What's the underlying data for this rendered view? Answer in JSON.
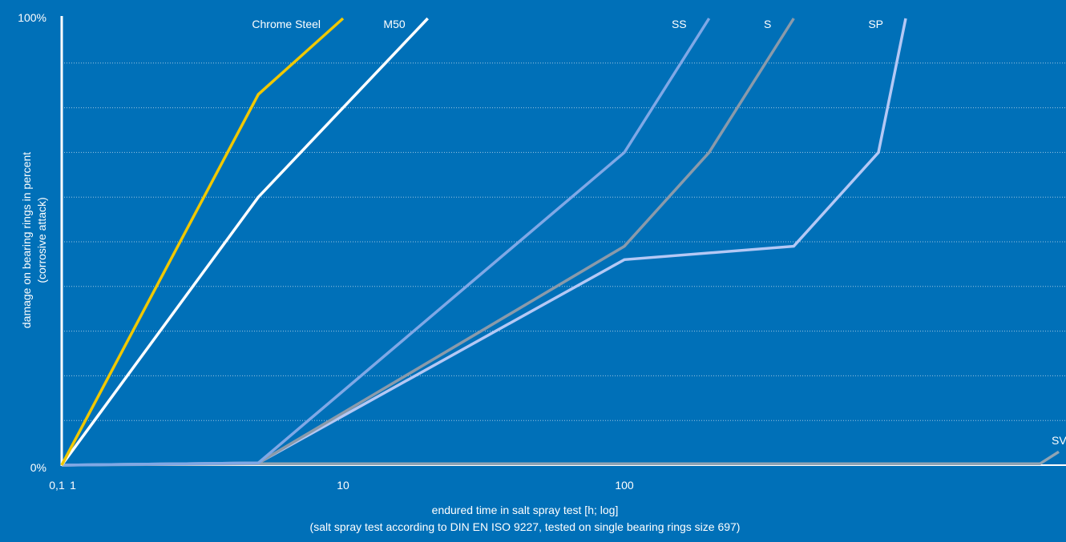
{
  "chart_data": {
    "type": "line",
    "x_scale": "log",
    "xlabel": "endured time in salt spray test [h; log]",
    "xlabel_note": "(salt spray test according to DIN EN ISO 9227, tested on single bearing rings size 697)",
    "ylabel": "damage on bearing rings in percent",
    "ylabel_note": "(corrosive attack)",
    "x_ticks": [
      {
        "label": "0,1",
        "value": 0.1
      },
      {
        "label": "1",
        "value": 1
      },
      {
        "label": "10",
        "value": 10
      },
      {
        "label": "100",
        "value": 100
      }
    ],
    "y_ticks": [
      {
        "label": "0%",
        "value": 0
      },
      {
        "label": "100%",
        "value": 100
      }
    ],
    "ylim": [
      0,
      100
    ],
    "grid": "horizontal dotted",
    "series": [
      {
        "name": "Chrome Steel",
        "color": "#f0c800",
        "points": [
          [
            1,
            0
          ],
          [
            5,
            83
          ],
          [
            10,
            100
          ]
        ]
      },
      {
        "name": "M50",
        "color": "#ffffff",
        "points": [
          [
            1,
            0
          ],
          [
            5,
            60
          ],
          [
            20,
            100
          ]
        ]
      },
      {
        "name": "SS",
        "color": "#7fa8e6",
        "points": [
          [
            1,
            0
          ],
          [
            5,
            0.5
          ],
          [
            100,
            70
          ],
          [
            200,
            100
          ]
        ]
      },
      {
        "name": "S",
        "color": "#8a9aaa",
        "points": [
          [
            1,
            0
          ],
          [
            5,
            0.5
          ],
          [
            100,
            49
          ],
          [
            200,
            70
          ],
          [
            400,
            100
          ]
        ]
      },
      {
        "name": "SP",
        "color": "#b4c8f5",
        "points": [
          [
            1,
            0
          ],
          [
            5,
            0.5
          ],
          [
            100,
            46
          ],
          [
            400,
            49
          ],
          [
            800,
            70
          ],
          [
            1000,
            100
          ]
        ]
      },
      {
        "name": "SV",
        "color": "#8fa4b4",
        "points": [
          [
            1,
            0
          ],
          [
            5,
            0.3
          ],
          [
            3000,
            0.3
          ],
          [
            3500,
            3
          ]
        ]
      }
    ]
  }
}
